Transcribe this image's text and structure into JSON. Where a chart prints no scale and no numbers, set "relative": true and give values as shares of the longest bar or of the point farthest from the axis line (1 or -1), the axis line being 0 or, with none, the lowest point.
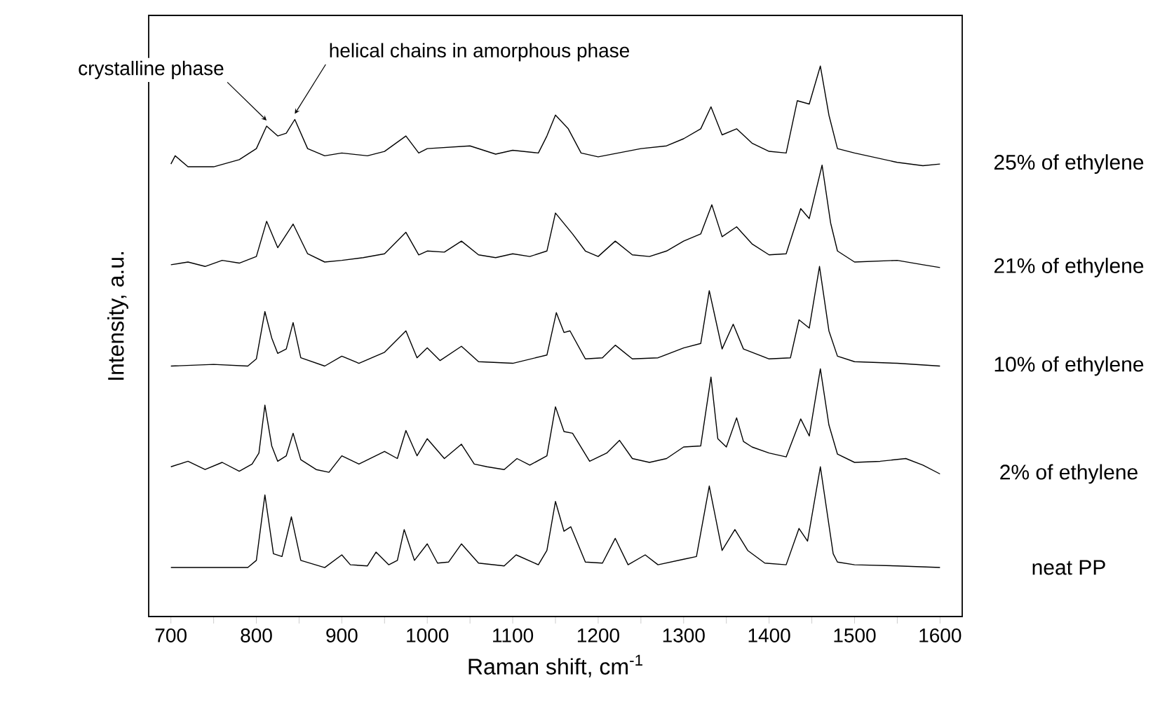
{
  "chart_data": {
    "type": "line",
    "relative": true,
    "xlabel": "Raman shift, cm$^{-1}$",
    "ylabel": "Intensity, a.u.",
    "marker": "none",
    "xlim": [
      674,
      1626
    ],
    "xticks": [
      700,
      {
        "value": 750,
        "label": null
      },
      800,
      {
        "value": 850,
        "label": null
      },
      900,
      {
        "value": 950,
        "label": null
      },
      1000,
      {
        "value": 1050,
        "label": null
      },
      1100,
      {
        "value": 1150,
        "label": null
      },
      1200,
      {
        "value": 1250,
        "label": null
      },
      1300,
      {
        "value": 1350,
        "label": null
      },
      1400,
      {
        "value": 1450,
        "label": null
      },
      1500,
      {
        "value": 1550,
        "label": null
      },
      1600
    ],
    "annotations": [
      {
        "text": "crystalline phase",
        "x": 812,
        "y": 0.891
      },
      {
        "text": "helical chains in amorphous phase",
        "x": 845,
        "y": 0.903
      }
    ],
    "series": [
      {
        "name": "neat PP",
        "color": "#000000",
        "x": [
          700,
          790,
          800,
          810,
          820,
          830,
          841,
          852,
          880,
          900,
          910,
          930,
          940,
          955,
          965,
          973,
          985,
          1000,
          1012,
          1025,
          1040,
          1060,
          1090,
          1104,
          1130,
          1140,
          1150,
          1160,
          1168,
          1185,
          1205,
          1220,
          1235,
          1255,
          1270,
          1300,
          1315,
          1330,
          1345,
          1360,
          1375,
          1395,
          1420,
          1435,
          1445,
          1460,
          1475,
          1480,
          1500,
          1550,
          1600
        ],
        "values": [
          0.089,
          0.089,
          0.102,
          0.221,
          0.114,
          0.109,
          0.181,
          0.102,
          0.089,
          0.112,
          0.094,
          0.092,
          0.117,
          0.094,
          0.102,
          0.158,
          0.102,
          0.132,
          0.097,
          0.099,
          0.132,
          0.097,
          0.092,
          0.112,
          0.094,
          0.12,
          0.209,
          0.155,
          0.163,
          0.099,
          0.097,
          0.142,
          0.094,
          0.112,
          0.094,
          0.104,
          0.109,
          0.237,
          0.12,
          0.158,
          0.12,
          0.097,
          0.094,
          0.16,
          0.137,
          0.272,
          0.114,
          0.099,
          0.094,
          0.092,
          0.089
        ]
      },
      {
        "name": "2% of ethylene",
        "color": "#000000",
        "x": [
          700,
          720,
          740,
          760,
          780,
          795,
          803,
          810,
          818,
          825,
          835,
          843,
          852,
          870,
          885,
          900,
          920,
          950,
          965,
          975,
          988,
          1000,
          1020,
          1040,
          1055,
          1070,
          1090,
          1105,
          1120,
          1140,
          1150,
          1160,
          1170,
          1190,
          1210,
          1225,
          1240,
          1260,
          1280,
          1300,
          1320,
          1332,
          1340,
          1350,
          1362,
          1370,
          1380,
          1400,
          1420,
          1437,
          1447,
          1460,
          1470,
          1480,
          1500,
          1530,
          1560,
          1580,
          1600
        ],
        "values": [
          0.272,
          0.282,
          0.267,
          0.28,
          0.264,
          0.277,
          0.297,
          0.384,
          0.31,
          0.282,
          0.292,
          0.333,
          0.285,
          0.267,
          0.262,
          0.292,
          0.277,
          0.3,
          0.287,
          0.338,
          0.292,
          0.323,
          0.287,
          0.313,
          0.277,
          0.272,
          0.267,
          0.287,
          0.275,
          0.292,
          0.381,
          0.336,
          0.333,
          0.282,
          0.297,
          0.32,
          0.287,
          0.28,
          0.287,
          0.308,
          0.31,
          0.435,
          0.323,
          0.308,
          0.361,
          0.318,
          0.308,
          0.297,
          0.29,
          0.359,
          0.328,
          0.45,
          0.348,
          0.295,
          0.28,
          0.282,
          0.287,
          0.275,
          0.259
        ]
      },
      {
        "name": "10% of ethylene",
        "color": "#000000",
        "x": [
          700,
          750,
          790,
          800,
          810,
          818,
          825,
          835,
          843,
          852,
          880,
          900,
          920,
          950,
          975,
          988,
          1000,
          1015,
          1040,
          1060,
          1100,
          1140,
          1151,
          1160,
          1167,
          1185,
          1205,
          1220,
          1240,
          1270,
          1300,
          1320,
          1330,
          1345,
          1358,
          1370,
          1400,
          1425,
          1435,
          1447,
          1459,
          1470,
          1480,
          1500,
          1550,
          1600
        ],
        "values": [
          0.455,
          0.458,
          0.455,
          0.468,
          0.554,
          0.506,
          0.478,
          0.486,
          0.534,
          0.47,
          0.455,
          0.473,
          0.46,
          0.48,
          0.519,
          0.47,
          0.488,
          0.465,
          0.491,
          0.463,
          0.46,
          0.475,
          0.552,
          0.516,
          0.519,
          0.468,
          0.47,
          0.493,
          0.468,
          0.47,
          0.488,
          0.496,
          0.592,
          0.486,
          0.531,
          0.486,
          0.468,
          0.47,
          0.539,
          0.524,
          0.636,
          0.519,
          0.473,
          0.463,
          0.46,
          0.455
        ]
      },
      {
        "name": "21% of ethylene",
        "color": "#000000",
        "x": [
          700,
          720,
          740,
          760,
          780,
          800,
          812,
          825,
          843,
          860,
          880,
          900,
          925,
          950,
          975,
          990,
          1000,
          1020,
          1040,
          1060,
          1080,
          1100,
          1120,
          1140,
          1150,
          1170,
          1185,
          1200,
          1220,
          1240,
          1260,
          1280,
          1300,
          1320,
          1333,
          1345,
          1362,
          1380,
          1400,
          1420,
          1437,
          1447,
          1462,
          1472,
          1480,
          1500,
          1550,
          1580,
          1600
        ],
        "values": [
          0.639,
          0.644,
          0.636,
          0.647,
          0.642,
          0.654,
          0.718,
          0.67,
          0.713,
          0.659,
          0.644,
          0.647,
          0.652,
          0.659,
          0.698,
          0.657,
          0.664,
          0.662,
          0.682,
          0.657,
          0.652,
          0.659,
          0.654,
          0.664,
          0.733,
          0.695,
          0.664,
          0.654,
          0.682,
          0.657,
          0.654,
          0.664,
          0.682,
          0.695,
          0.748,
          0.69,
          0.708,
          0.677,
          0.657,
          0.659,
          0.741,
          0.723,
          0.82,
          0.715,
          0.664,
          0.644,
          0.647,
          0.639,
          0.634
        ]
      },
      {
        "name": "25% of ethylene",
        "color": "#000000",
        "x": [
          700,
          705,
          720,
          750,
          780,
          800,
          812,
          825,
          835,
          845,
          860,
          880,
          900,
          930,
          950,
          975,
          990,
          1000,
          1050,
          1080,
          1100,
          1130,
          1140,
          1150,
          1165,
          1180,
          1200,
          1250,
          1280,
          1300,
          1320,
          1332,
          1345,
          1362,
          1380,
          1400,
          1420,
          1433,
          1447,
          1460,
          1470,
          1480,
          1500,
          1550,
          1580,
          1600
        ],
        "values": [
          0.822,
          0.837,
          0.817,
          0.817,
          0.83,
          0.85,
          0.891,
          0.873,
          0.878,
          0.903,
          0.85,
          0.837,
          0.842,
          0.837,
          0.845,
          0.873,
          0.842,
          0.85,
          0.855,
          0.84,
          0.847,
          0.842,
          0.873,
          0.911,
          0.886,
          0.842,
          0.835,
          0.85,
          0.855,
          0.868,
          0.886,
          0.926,
          0.875,
          0.886,
          0.86,
          0.845,
          0.842,
          0.937,
          0.931,
          1.0,
          0.911,
          0.85,
          0.842,
          0.825,
          0.819,
          0.822
        ]
      }
    ]
  }
}
